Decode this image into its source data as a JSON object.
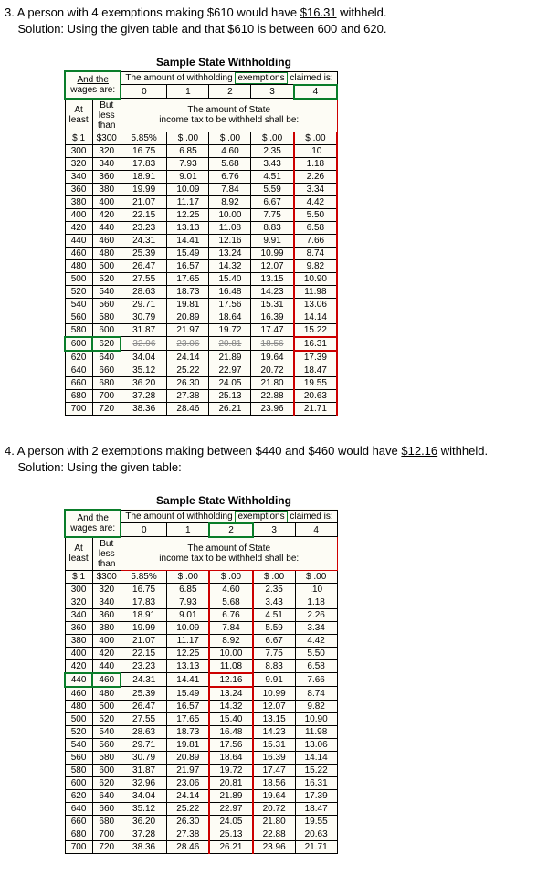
{
  "problem3": {
    "number": "3.",
    "text1": "A person with 4 exemptions making $610 would have ",
    "answer": "$16.31",
    "text2": " withheld.",
    "solution": "Solution: Using the given table and that $610 is between 600 and 620.",
    "highlight_col": "4",
    "highlight_row_from": "600",
    "highlight_row_to": "620",
    "highlight_answer": "16.31"
  },
  "problem4": {
    "number": "4.",
    "text1": "A person with 2 exemptions making between $440 and $460 would have ",
    "answer": "$12.16",
    "text2": " withheld.",
    "solution": "Solution: Using the given table:",
    "highlight_col": "2",
    "highlight_row_from": "440",
    "highlight_row_to": "460",
    "highlight_answer": "12.16"
  },
  "table": {
    "title": "Sample State Withholding",
    "wages_header": "And the wages are:",
    "exemptions_header": "The amount of withholding exemptions claimed is:",
    "cols": [
      "0",
      "1",
      "2",
      "3",
      "4"
    ],
    "sub_at": "At least",
    "sub_but": "But less than",
    "subheader": "The amount of State income tax to be withheld shall be:",
    "first_row": [
      "$  1",
      "$300",
      "5.85%",
      "$ .00",
      "$ .00",
      "$ .00",
      "$ .00"
    ],
    "rows": [
      [
        "300",
        "320",
        "16.75",
        "6.85",
        "4.60",
        "2.35",
        ".10"
      ],
      [
        "320",
        "340",
        "17.83",
        "7.93",
        "5.68",
        "3.43",
        "1.18"
      ],
      [
        "340",
        "360",
        "18.91",
        "9.01",
        "6.76",
        "4.51",
        "2.26"
      ],
      [
        "360",
        "380",
        "19.99",
        "10.09",
        "7.84",
        "5.59",
        "3.34"
      ],
      [
        "380",
        "400",
        "21.07",
        "11.17",
        "8.92",
        "6.67",
        "4.42"
      ],
      [
        "400",
        "420",
        "22.15",
        "12.25",
        "10.00",
        "7.75",
        "5.50"
      ],
      [
        "420",
        "440",
        "23.23",
        "13.13",
        "11.08",
        "8.83",
        "6.58"
      ],
      [
        "440",
        "460",
        "24.31",
        "14.41",
        "12.16",
        "9.91",
        "7.66"
      ],
      [
        "460",
        "480",
        "25.39",
        "15.49",
        "13.24",
        "10.99",
        "8.74"
      ],
      [
        "480",
        "500",
        "26.47",
        "16.57",
        "14.32",
        "12.07",
        "9.82"
      ],
      [
        "500",
        "520",
        "27.55",
        "17.65",
        "15.40",
        "13.15",
        "10.90"
      ],
      [
        "520",
        "540",
        "28.63",
        "18.73",
        "16.48",
        "14.23",
        "11.98"
      ],
      [
        "540",
        "560",
        "29.71",
        "19.81",
        "17.56",
        "15.31",
        "13.06"
      ],
      [
        "560",
        "580",
        "30.79",
        "20.89",
        "18.64",
        "16.39",
        "14.14"
      ],
      [
        "580",
        "600",
        "31.87",
        "21.97",
        "19.72",
        "17.47",
        "15.22"
      ],
      [
        "600",
        "620",
        "32.96",
        "23.06",
        "20.81",
        "18.56",
        "16.31"
      ],
      [
        "620",
        "640",
        "34.04",
        "24.14",
        "21.89",
        "19.64",
        "17.39"
      ],
      [
        "640",
        "660",
        "35.12",
        "25.22",
        "22.97",
        "20.72",
        "18.47"
      ],
      [
        "660",
        "680",
        "36.20",
        "26.30",
        "24.05",
        "21.80",
        "19.55"
      ],
      [
        "680",
        "700",
        "37.28",
        "27.38",
        "25.13",
        "22.88",
        "20.63"
      ],
      [
        "700",
        "720",
        "38.36",
        "28.46",
        "26.21",
        "23.96",
        "21.71"
      ]
    ],
    "colors": {
      "green": "#0a7d2a",
      "red": "#c00",
      "bg": "#fdfcf5"
    }
  }
}
